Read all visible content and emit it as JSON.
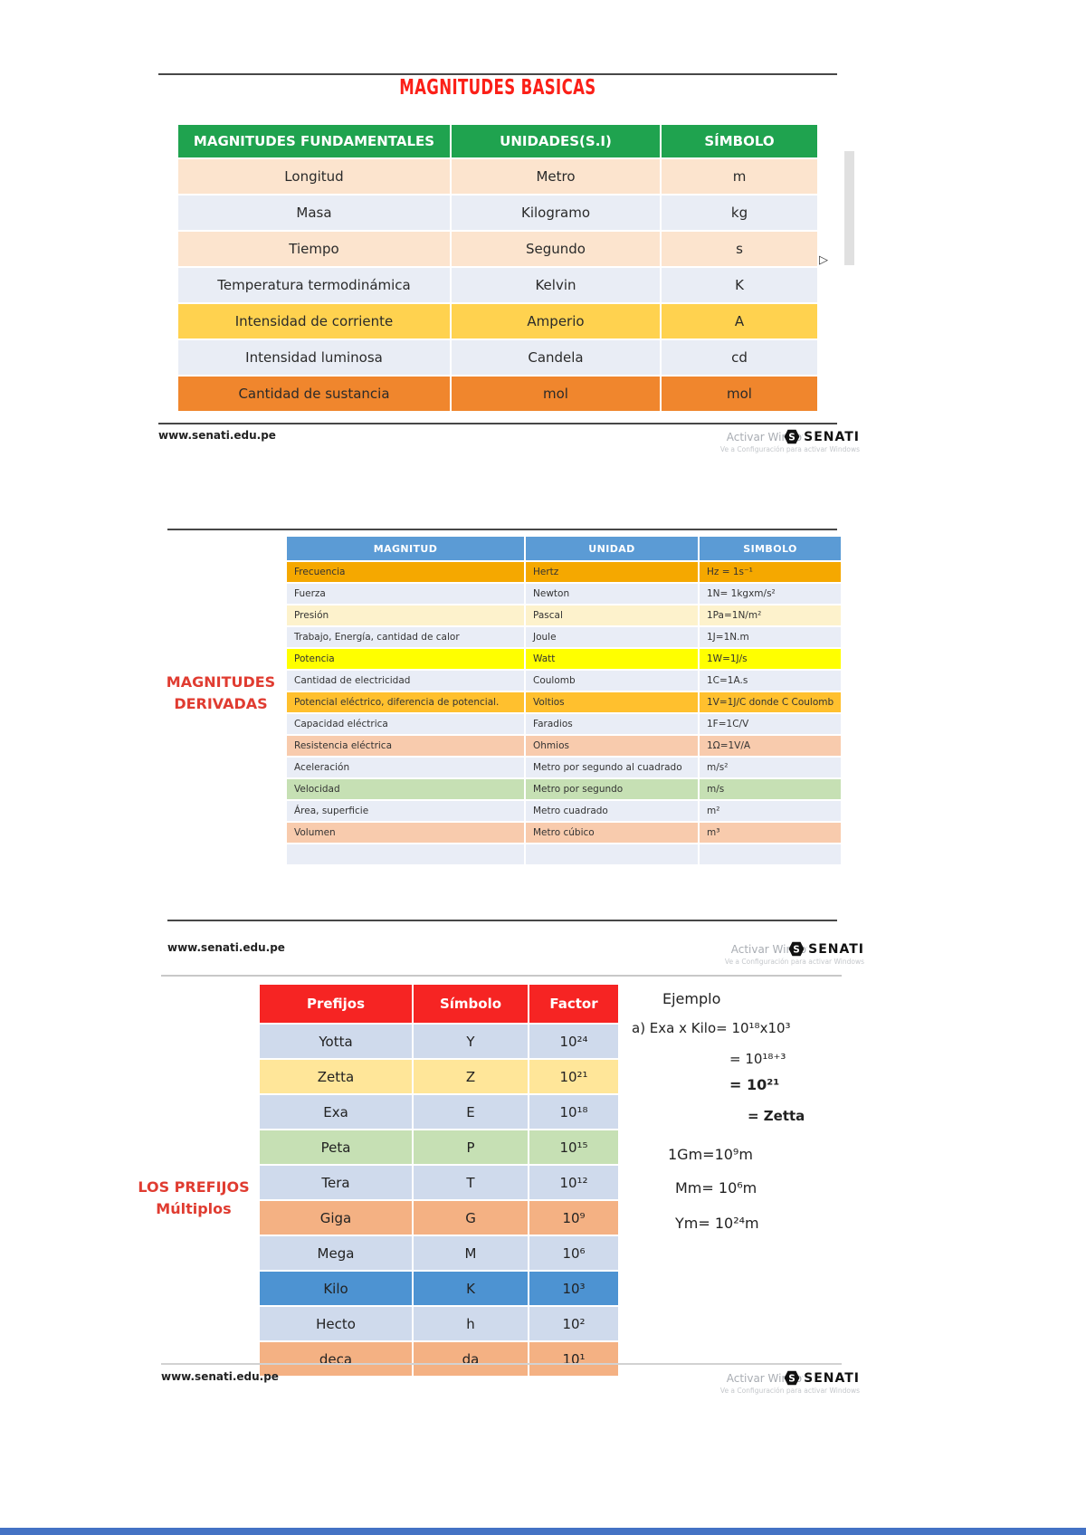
{
  "page": {
    "footer_url": "www.senati.edu.pe",
    "brand": "SENATI",
    "watermark_line1": "Activar Windows",
    "watermark_line2": "Ve a Configuración para activar Windows"
  },
  "colors": {
    "title_red": "#fb2018",
    "label_red": "#e03c31",
    "header_green": "#1fa34f",
    "header_blue": "#5b9bd5",
    "header_red": "#f62423",
    "window_bar_blue": "#4472c4"
  },
  "slide1": {
    "title": "MAGNITUDES BASICAS",
    "table": {
      "headers": [
        "MAGNITUDES FUNDAMENTALES",
        "UNIDADES(S.I)",
        "SÍMBOLO"
      ],
      "rows": [
        {
          "magnitud": "Longitud",
          "unidad": "Metro",
          "simbolo": "m",
          "bg": "#fce4ce"
        },
        {
          "magnitud": "Masa",
          "unidad": "Kilogramo",
          "simbolo": "kg",
          "bg": "#e9edf5"
        },
        {
          "magnitud": "Tiempo",
          "unidad": "Segundo",
          "simbolo": "s",
          "bg": "#fce4ce"
        },
        {
          "magnitud": "Temperatura termodinámica",
          "unidad": "Kelvin",
          "simbolo": "K",
          "bg": "#e9edf5"
        },
        {
          "magnitud": "Intensidad de corriente",
          "unidad": "Amperio",
          "simbolo": "A",
          "bg": "#ffd24f"
        },
        {
          "magnitud": "Intensidad luminosa",
          "unidad": "Candela",
          "simbolo": "cd",
          "bg": "#e9edf5"
        },
        {
          "magnitud": "Cantidad de sustancia",
          "unidad": "mol",
          "simbolo": "mol",
          "bg": "#f0862d"
        }
      ]
    }
  },
  "slide2": {
    "label_line1": "MAGNITUDES",
    "label_line2": "DERIVADAS",
    "table": {
      "headers": [
        "MAGNITUD",
        "UNIDAD",
        "SIMBOLO"
      ],
      "rows": [
        {
          "magnitud": "Frecuencia",
          "unidad": "Hertz",
          "simbolo": "Hz = 1s⁻¹",
          "bg": "#f5a800"
        },
        {
          "magnitud": "Fuerza",
          "unidad": "Newton",
          "simbolo": "1N= 1kgxm/s²",
          "bg": "#e9edf6"
        },
        {
          "magnitud": "Presión",
          "unidad": "Pascal",
          "simbolo": "1Pa=1N/m²",
          "bg": "#fdf2cc"
        },
        {
          "magnitud": "Trabajo, Energía, cantidad de calor",
          "unidad": "Joule",
          "simbolo": "1J=1N.m",
          "bg": "#e9edf6"
        },
        {
          "magnitud": "Potencia",
          "unidad": "Watt",
          "simbolo": "1W=1J/s",
          "bg": "#ffff00"
        },
        {
          "magnitud": "Cantidad de electricidad",
          "unidad": "Coulomb",
          "simbolo": "1C=1A.s",
          "bg": "#e9edf6"
        },
        {
          "magnitud": "Potencial eléctrico, diferencia de potencial.",
          "unidad": "Voltios",
          "simbolo": "1V=1J/C donde C Coulomb",
          "bg": "#ffc02e"
        },
        {
          "magnitud": "Capacidad eléctrica",
          "unidad": "Faradios",
          "simbolo": "1F=1C/V",
          "bg": "#e9edf6"
        },
        {
          "magnitud": "Resistencia eléctrica",
          "unidad": "Ohmios",
          "simbolo": "1Ω=1V/A",
          "bg": "#f8cbad"
        },
        {
          "magnitud": "Aceleración",
          "unidad": "Metro por segundo al cuadrado",
          "simbolo": "m/s²",
          "bg": "#e9edf6"
        },
        {
          "magnitud": "Velocidad",
          "unidad": "Metro por segundo",
          "simbolo": "m/s",
          "bg": "#c6e0b4"
        },
        {
          "magnitud": "Área, superficie",
          "unidad": "Metro cuadrado",
          "simbolo": "m²",
          "bg": "#e9edf6"
        },
        {
          "magnitud": "Volumen",
          "unidad": "Metro cúbico",
          "simbolo": "m³",
          "bg": "#f8cbad"
        },
        {
          "magnitud": "",
          "unidad": "",
          "simbolo": "",
          "bg": "#e9edf6"
        }
      ]
    }
  },
  "slide3": {
    "label_line1": "LOS PREFIJOS",
    "label_line2": "Múltiplos",
    "table": {
      "headers": [
        "Prefijos",
        "Símbolo",
        "Factor"
      ],
      "rows": [
        {
          "prefijo": "Yotta",
          "simbolo": "Y",
          "factor": "10²⁴",
          "bg": "#cfdaec"
        },
        {
          "prefijo": "Zetta",
          "simbolo": "Z",
          "factor": "10²¹",
          "bg": "#ffe699"
        },
        {
          "prefijo": "Exa",
          "simbolo": "E",
          "factor": "10¹⁸",
          "bg": "#cfdaec"
        },
        {
          "prefijo": "Peta",
          "simbolo": "P",
          "factor": "10¹⁵",
          "bg": "#c6e0b4"
        },
        {
          "prefijo": "Tera",
          "simbolo": "T",
          "factor": "10¹²",
          "bg": "#cfdaec"
        },
        {
          "prefijo": "Giga",
          "simbolo": "G",
          "factor": "10⁹",
          "bg": "#f4b183"
        },
        {
          "prefijo": "Mega",
          "simbolo": "M",
          "factor": "10⁶",
          "bg": "#cfdaec"
        },
        {
          "prefijo": "Kilo",
          "simbolo": "K",
          "factor": "10³",
          "bg": "#4d93d2"
        },
        {
          "prefijo": "Hecto",
          "simbolo": "h",
          "factor": "10²",
          "bg": "#cfdaec"
        },
        {
          "prefijo": "deca",
          "simbolo": "da",
          "factor": "10¹",
          "bg": "#f4b183"
        }
      ]
    },
    "example": {
      "title": "Ejemplo",
      "lines": [
        "a) Exa x Kilo= 10¹⁸x10³",
        "= 10¹⁸⁺³",
        "= 10²¹",
        "= Zetta",
        "1Gm=10⁹m",
        "Mm= 10⁶m",
        "Ym= 10²⁴m"
      ]
    }
  }
}
